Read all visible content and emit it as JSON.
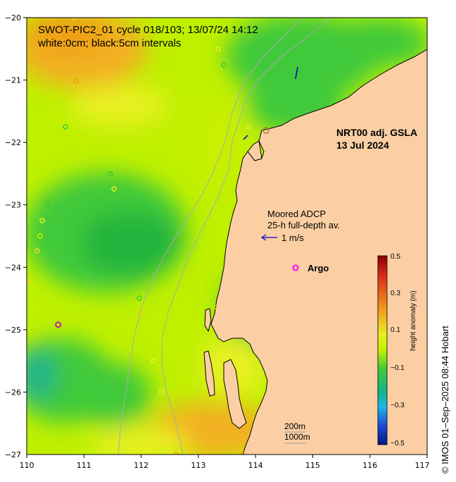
{
  "title": {
    "line1": "SWOT-PIC2_01 cycle 018/103; 13/07/24 14:12",
    "line2": "white:0cm; black:5cm intervals"
  },
  "product": {
    "line1": "NRT00 adj. GSLA",
    "line2": "13 Jul 2024"
  },
  "adcp_legend": {
    "line1": "Moored ADCP",
    "line2": "25-h full-depth av.",
    "scale": "1 m/s"
  },
  "argo_legend": {
    "label": "Argo"
  },
  "isobaths": {
    "shallow": "200m",
    "deep": "1000m"
  },
  "colorbar": {
    "title": "height anomaly (m)",
    "ticks": [
      "0.5",
      "0.3",
      "0.1",
      "−0.1",
      "−0.3",
      "−0.5"
    ],
    "range": [
      -0.5,
      0.5
    ]
  },
  "credit": "© IMOS 01–Sep–2025 08:44 Hobart",
  "axes": {
    "x_ticks": [
      "110",
      "111",
      "112",
      "113",
      "114",
      "115",
      "116",
      "117"
    ],
    "y_ticks": [
      "−20",
      "−21",
      "−22",
      "−23",
      "−24",
      "−25",
      "−26",
      "−27"
    ],
    "lon_range": [
      110,
      117
    ],
    "lat_range": [
      -27,
      -20
    ]
  },
  "colors": {
    "land": "#fbcfa3",
    "sla_high": "#f2a51c",
    "sla_mid": "#bff000",
    "sla_low": "#3fc93a",
    "argo": "#ff00ff",
    "adcp_arrow": "#0000cc"
  },
  "markers": {
    "argo_floats": [
      {
        "lon": 110.55,
        "lat": -24.92
      }
    ]
  }
}
